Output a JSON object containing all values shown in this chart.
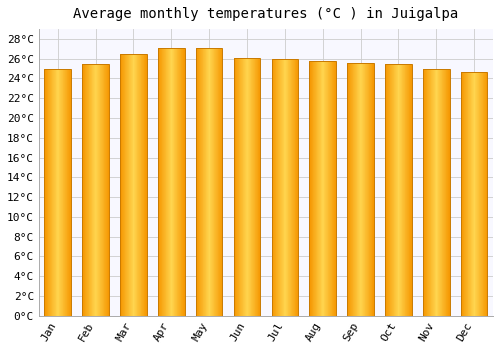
{
  "title": "Average monthly temperatures (°C ) in Juigalpa",
  "months": [
    "Jan",
    "Feb",
    "Mar",
    "Apr",
    "May",
    "Jun",
    "Jul",
    "Aug",
    "Sep",
    "Oct",
    "Nov",
    "Dec"
  ],
  "values": [
    25.0,
    25.5,
    26.5,
    27.1,
    27.1,
    26.1,
    26.0,
    25.8,
    25.6,
    25.5,
    25.0,
    24.7
  ],
  "bar_color_center": "#FFD54F",
  "bar_color_edge": "#F59600",
  "bar_edge_color": "#C97A00",
  "background_color": "#FFFFFF",
  "plot_bg_color": "#F8F8FF",
  "grid_color": "#CCCCCC",
  "ylim": [
    0,
    29
  ],
  "ytick_step": 2,
  "title_fontsize": 10,
  "tick_fontsize": 8,
  "tick_font": "monospace"
}
